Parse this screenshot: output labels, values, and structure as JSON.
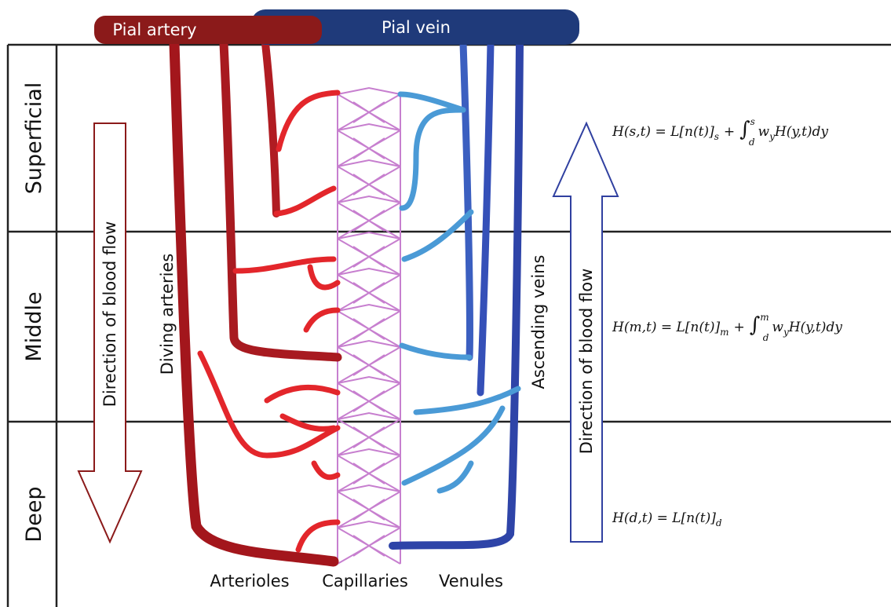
{
  "header": {
    "pial_artery": "Pial artery",
    "pial_vein": "Pial vein"
  },
  "layers": [
    "Superficial",
    "Middle",
    "Deep"
  ],
  "arrows": {
    "left": "Direction of blood flow",
    "right": "Direction of blood flow"
  },
  "vessels": {
    "diving": "Diving arteries",
    "ascending": "Ascending veins"
  },
  "bottom_labels": [
    "Arterioles",
    "Capillaries",
    "Venules"
  ],
  "equations": [
    {
      "lhs": "H(s,t) = L[n(t)]",
      "sub": "s",
      "plus": "+",
      "int": "∫",
      "lower": "d",
      "upper": "s",
      "w": "w",
      "wsub": "y",
      "tail": "H(y,t)dy"
    },
    {
      "lhs": "H(m,t) = L[n(t)]",
      "sub": "m",
      "plus": "+",
      "int": "∫",
      "lower": "d",
      "upper": "m",
      "w": "w",
      "wsub": "y",
      "tail": "H(y,t)dy"
    },
    {
      "lhs": "H(d,t) = L[n(t)]",
      "sub": "d"
    }
  ]
}
